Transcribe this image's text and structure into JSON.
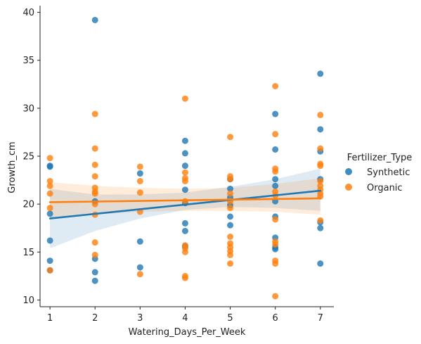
{
  "chart_data": {
    "type": "scatter",
    "title": "",
    "xlabel": "Watering_Days_Per_Week",
    "ylabel": "Growth_cm",
    "xlim": [
      0.78,
      7.3
    ],
    "ylim": [
      9.3,
      40.7
    ],
    "x_ticks": [
      1,
      2,
      3,
      4,
      5,
      6,
      7
    ],
    "y_ticks": [
      10,
      15,
      20,
      25,
      30,
      35,
      40
    ],
    "grid": false,
    "legend": {
      "title": "Fertilizer_Type",
      "placement": "right"
    },
    "series": [
      {
        "name": "Synthetic",
        "color": "#1f77b4",
        "regression": {
          "x": [
            1,
            7
          ],
          "y": [
            18.5,
            21.4
          ]
        },
        "ci_band": {
          "x": [
            1,
            2,
            3,
            4,
            5,
            6,
            7
          ],
          "lower": [
            15.4,
            17.2,
            18.5,
            19.4,
            19.7,
            19.6,
            19.3
          ],
          "upper": [
            21.6,
            21.0,
            21.0,
            21.2,
            21.8,
            22.6,
            23.7
          ]
        },
        "points": [
          [
            1,
            24.0
          ],
          [
            1,
            23.9
          ],
          [
            1,
            19.0
          ],
          [
            1,
            16.2
          ],
          [
            1,
            14.1
          ],
          [
            1,
            13.1
          ],
          [
            2,
            39.2
          ],
          [
            2,
            20.3
          ],
          [
            2,
            14.3
          ],
          [
            2,
            12.9
          ],
          [
            2,
            12.0
          ],
          [
            3,
            23.2
          ],
          [
            3,
            16.1
          ],
          [
            3,
            13.4
          ],
          [
            4,
            26.6
          ],
          [
            4,
            25.3
          ],
          [
            4,
            24.0
          ],
          [
            4,
            21.5
          ],
          [
            4,
            20.1
          ],
          [
            4,
            18.0
          ],
          [
            4,
            17.2
          ],
          [
            4,
            15.6
          ],
          [
            5,
            22.6
          ],
          [
            5,
            21.6
          ],
          [
            5,
            20.7
          ],
          [
            5,
            19.9
          ],
          [
            5,
            18.7
          ],
          [
            5,
            17.8
          ],
          [
            6,
            29.4
          ],
          [
            6,
            25.7
          ],
          [
            6,
            22.6
          ],
          [
            6,
            21.9
          ],
          [
            6,
            20.3
          ],
          [
            6,
            18.7
          ],
          [
            6,
            16.5
          ],
          [
            6,
            15.5
          ],
          [
            6,
            15.3
          ],
          [
            7,
            33.6
          ],
          [
            7,
            27.8
          ],
          [
            7,
            25.5
          ],
          [
            7,
            22.6
          ],
          [
            7,
            18.1
          ],
          [
            7,
            17.5
          ],
          [
            7,
            13.8
          ]
        ]
      },
      {
        "name": "Organic",
        "color": "#ff7f0e",
        "regression": {
          "x": [
            1,
            7
          ],
          "y": [
            20.2,
            20.6
          ]
        },
        "ci_band": {
          "x": [
            1,
            2,
            3,
            4,
            5,
            6,
            7
          ],
          "lower": [
            18.4,
            18.9,
            19.2,
            19.3,
            19.3,
            19.2,
            18.9
          ],
          "upper": [
            22.3,
            21.9,
            21.7,
            21.6,
            21.7,
            22.1,
            22.7
          ]
        },
        "points": [
          [
            1,
            24.8
          ],
          [
            1,
            22.4
          ],
          [
            1,
            21.9
          ],
          [
            1,
            21.1
          ],
          [
            1,
            19.6
          ],
          [
            1,
            13.1
          ],
          [
            2,
            29.4
          ],
          [
            2,
            25.8
          ],
          [
            2,
            24.1
          ],
          [
            2,
            22.9
          ],
          [
            2,
            21.7
          ],
          [
            2,
            21.3
          ],
          [
            2,
            21.1
          ],
          [
            2,
            20.0
          ],
          [
            2,
            18.9
          ],
          [
            2,
            16.0
          ],
          [
            2,
            14.7
          ],
          [
            3,
            23.9
          ],
          [
            3,
            22.4
          ],
          [
            3,
            21.2
          ],
          [
            3,
            19.2
          ],
          [
            3,
            12.7
          ],
          [
            4,
            31.0
          ],
          [
            4,
            23.3
          ],
          [
            4,
            22.7
          ],
          [
            4,
            22.4
          ],
          [
            4,
            20.3
          ],
          [
            4,
            15.7
          ],
          [
            4,
            15.4
          ],
          [
            4,
            15.0
          ],
          [
            4,
            12.5
          ],
          [
            4,
            12.3
          ],
          [
            5,
            27.0
          ],
          [
            5,
            22.9
          ],
          [
            5,
            22.6
          ],
          [
            5,
            21.1
          ],
          [
            5,
            20.3
          ],
          [
            5,
            19.6
          ],
          [
            5,
            16.6
          ],
          [
            5,
            15.9
          ],
          [
            5,
            15.5
          ],
          [
            5,
            15.1
          ],
          [
            5,
            14.7
          ],
          [
            5,
            13.8
          ],
          [
            6,
            32.3
          ],
          [
            6,
            27.3
          ],
          [
            6,
            23.7
          ],
          [
            6,
            23.4
          ],
          [
            6,
            21.3
          ],
          [
            6,
            20.9
          ],
          [
            6,
            18.4
          ],
          [
            6,
            16.1
          ],
          [
            6,
            15.8
          ],
          [
            6,
            14.1
          ],
          [
            6,
            13.8
          ],
          [
            6,
            10.4
          ],
          [
            7,
            29.3
          ],
          [
            7,
            25.8
          ],
          [
            7,
            24.2
          ],
          [
            7,
            24.0
          ],
          [
            7,
            22.4
          ],
          [
            7,
            21.9
          ],
          [
            7,
            21.5
          ],
          [
            7,
            21.1
          ],
          [
            7,
            20.8
          ],
          [
            7,
            18.3
          ]
        ]
      }
    ]
  }
}
